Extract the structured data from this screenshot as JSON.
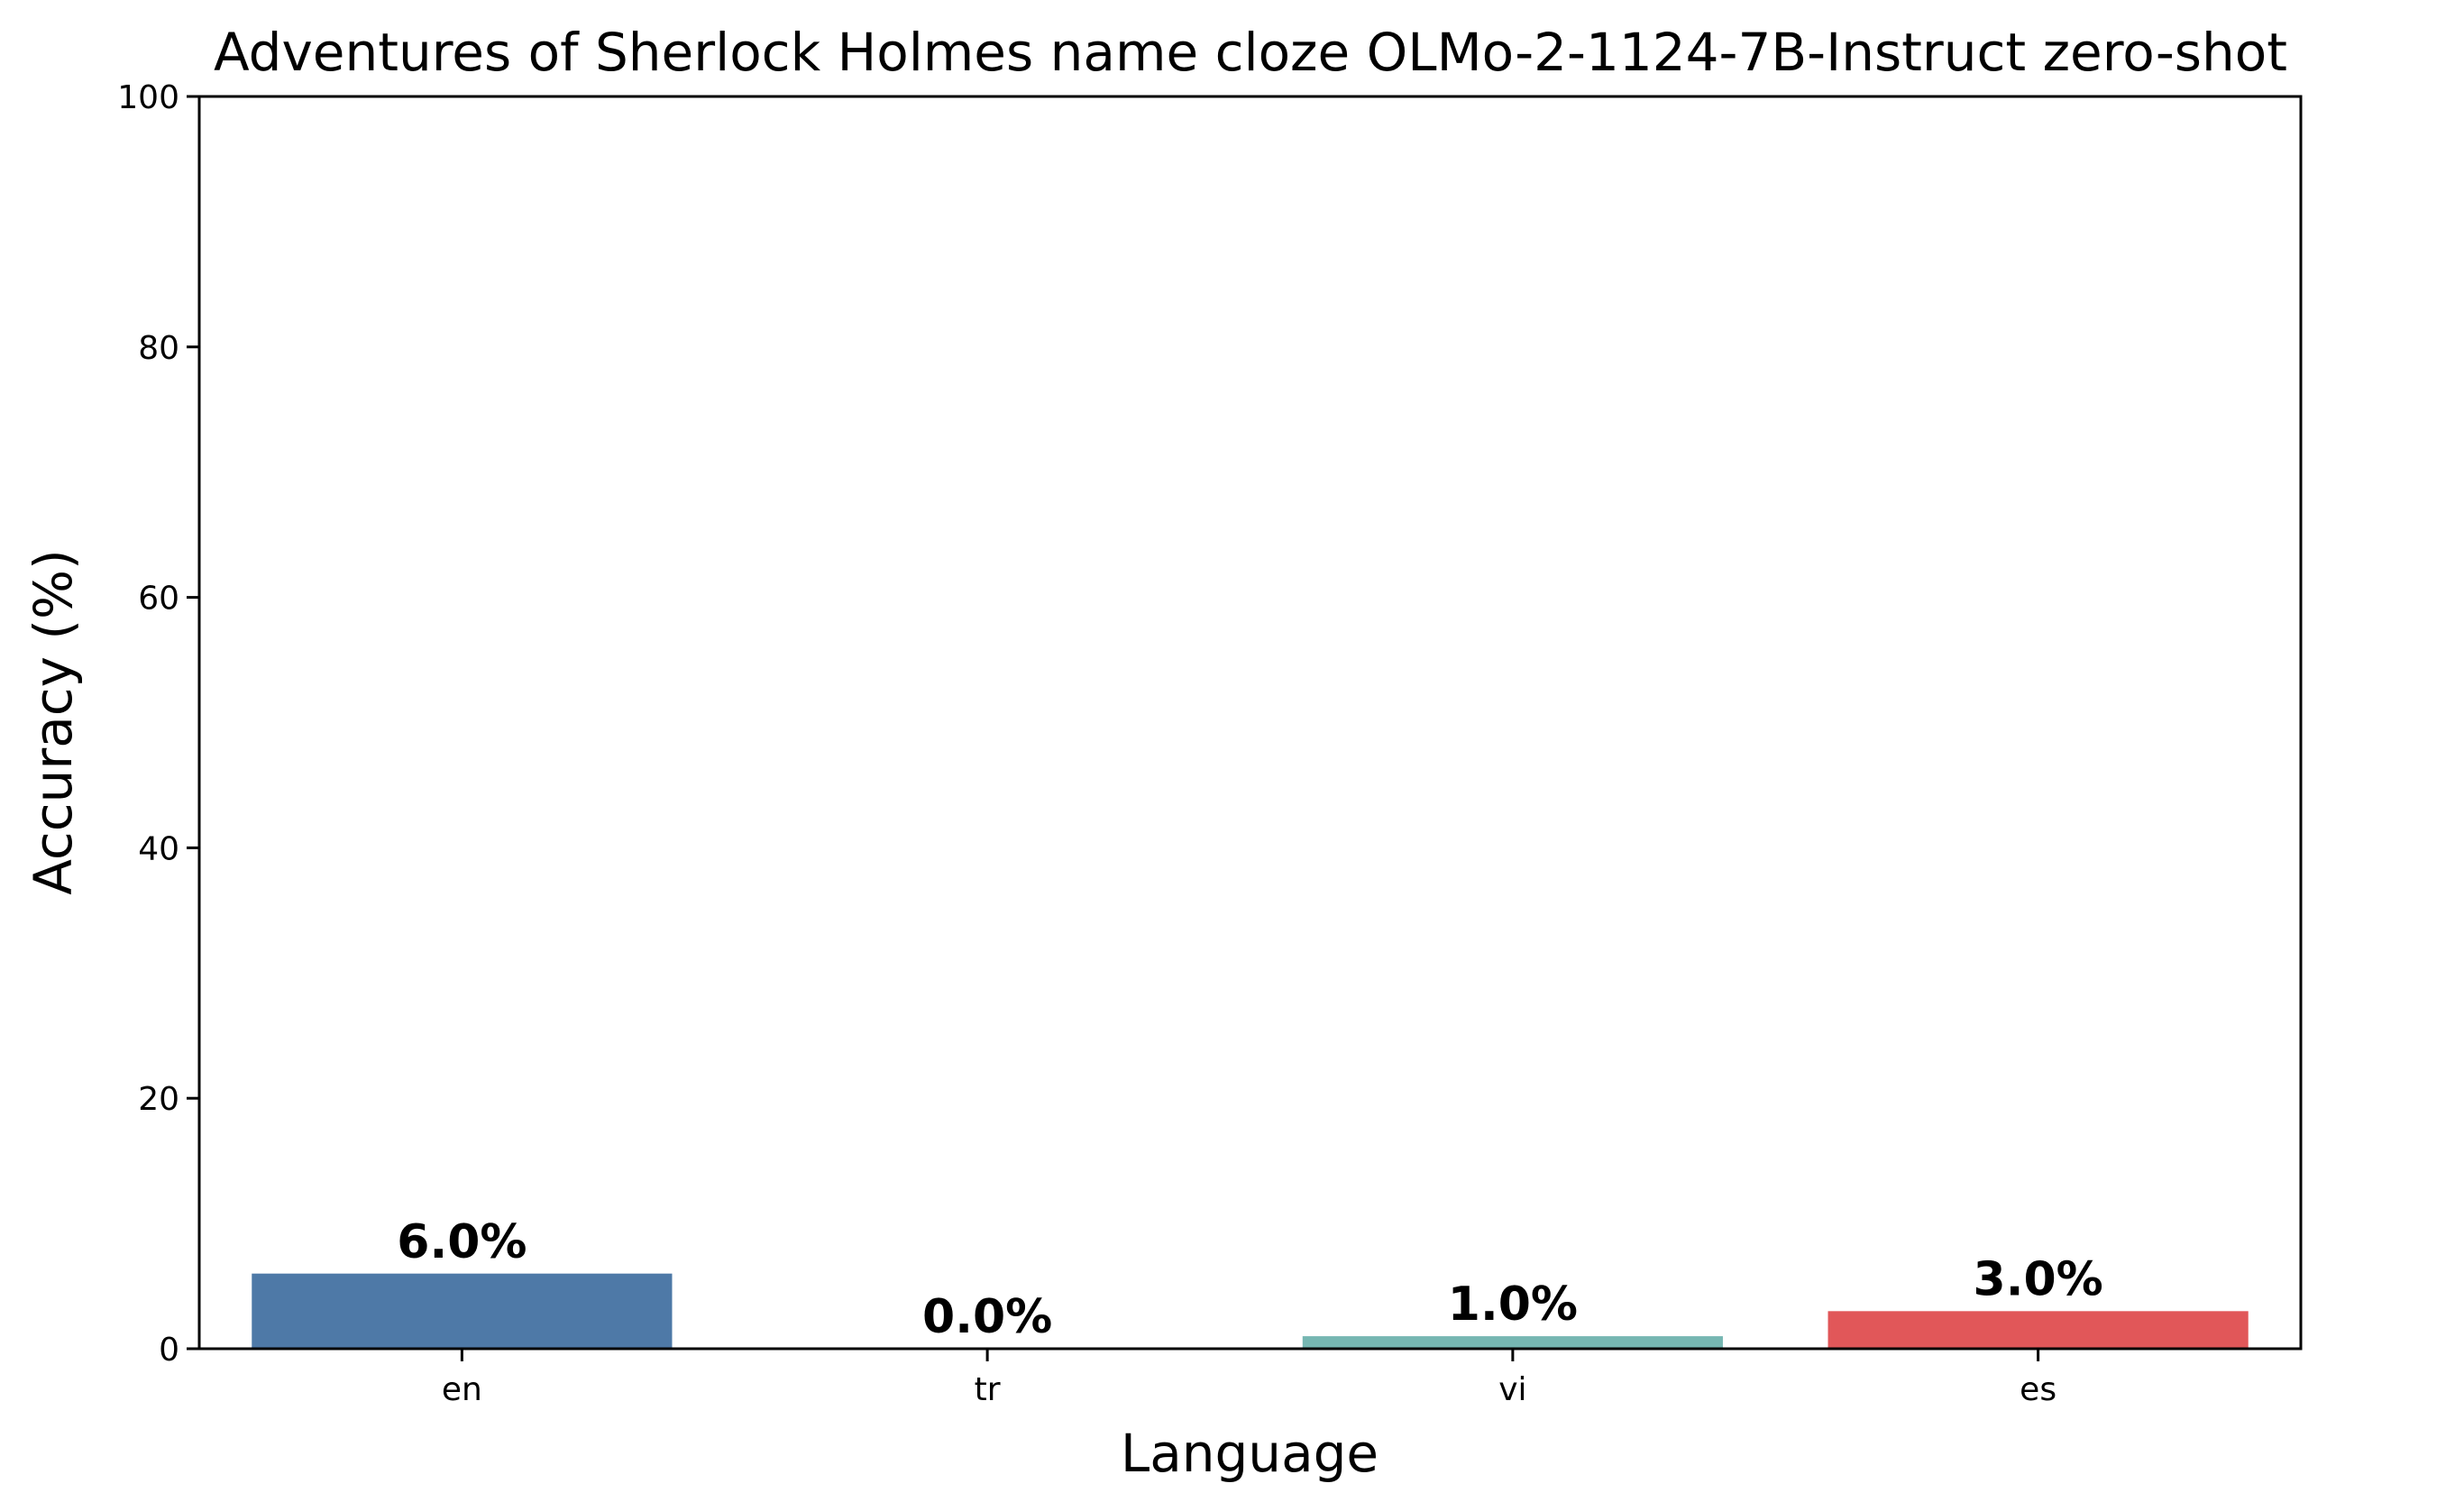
{
  "chart_data": {
    "type": "bar",
    "title": "Adventures of Sherlock Holmes name cloze OLMo-2-1124-7B-Instruct zero-shot",
    "xlabel": "Language",
    "ylabel": "Accuracy (%)",
    "categories": [
      "en",
      "tr",
      "vi",
      "es"
    ],
    "values": [
      6.0,
      0.0,
      1.0,
      3.0
    ],
    "value_labels": [
      "6.0%",
      "0.0%",
      "1.0%",
      "3.0%"
    ],
    "colors": [
      "#4e79a7",
      "#f28e2b",
      "#76b7b2",
      "#e15759"
    ],
    "ylim": [
      0,
      100
    ],
    "yticks": [
      0,
      20,
      40,
      60,
      80,
      100
    ],
    "grid": false,
    "legend": false
  }
}
